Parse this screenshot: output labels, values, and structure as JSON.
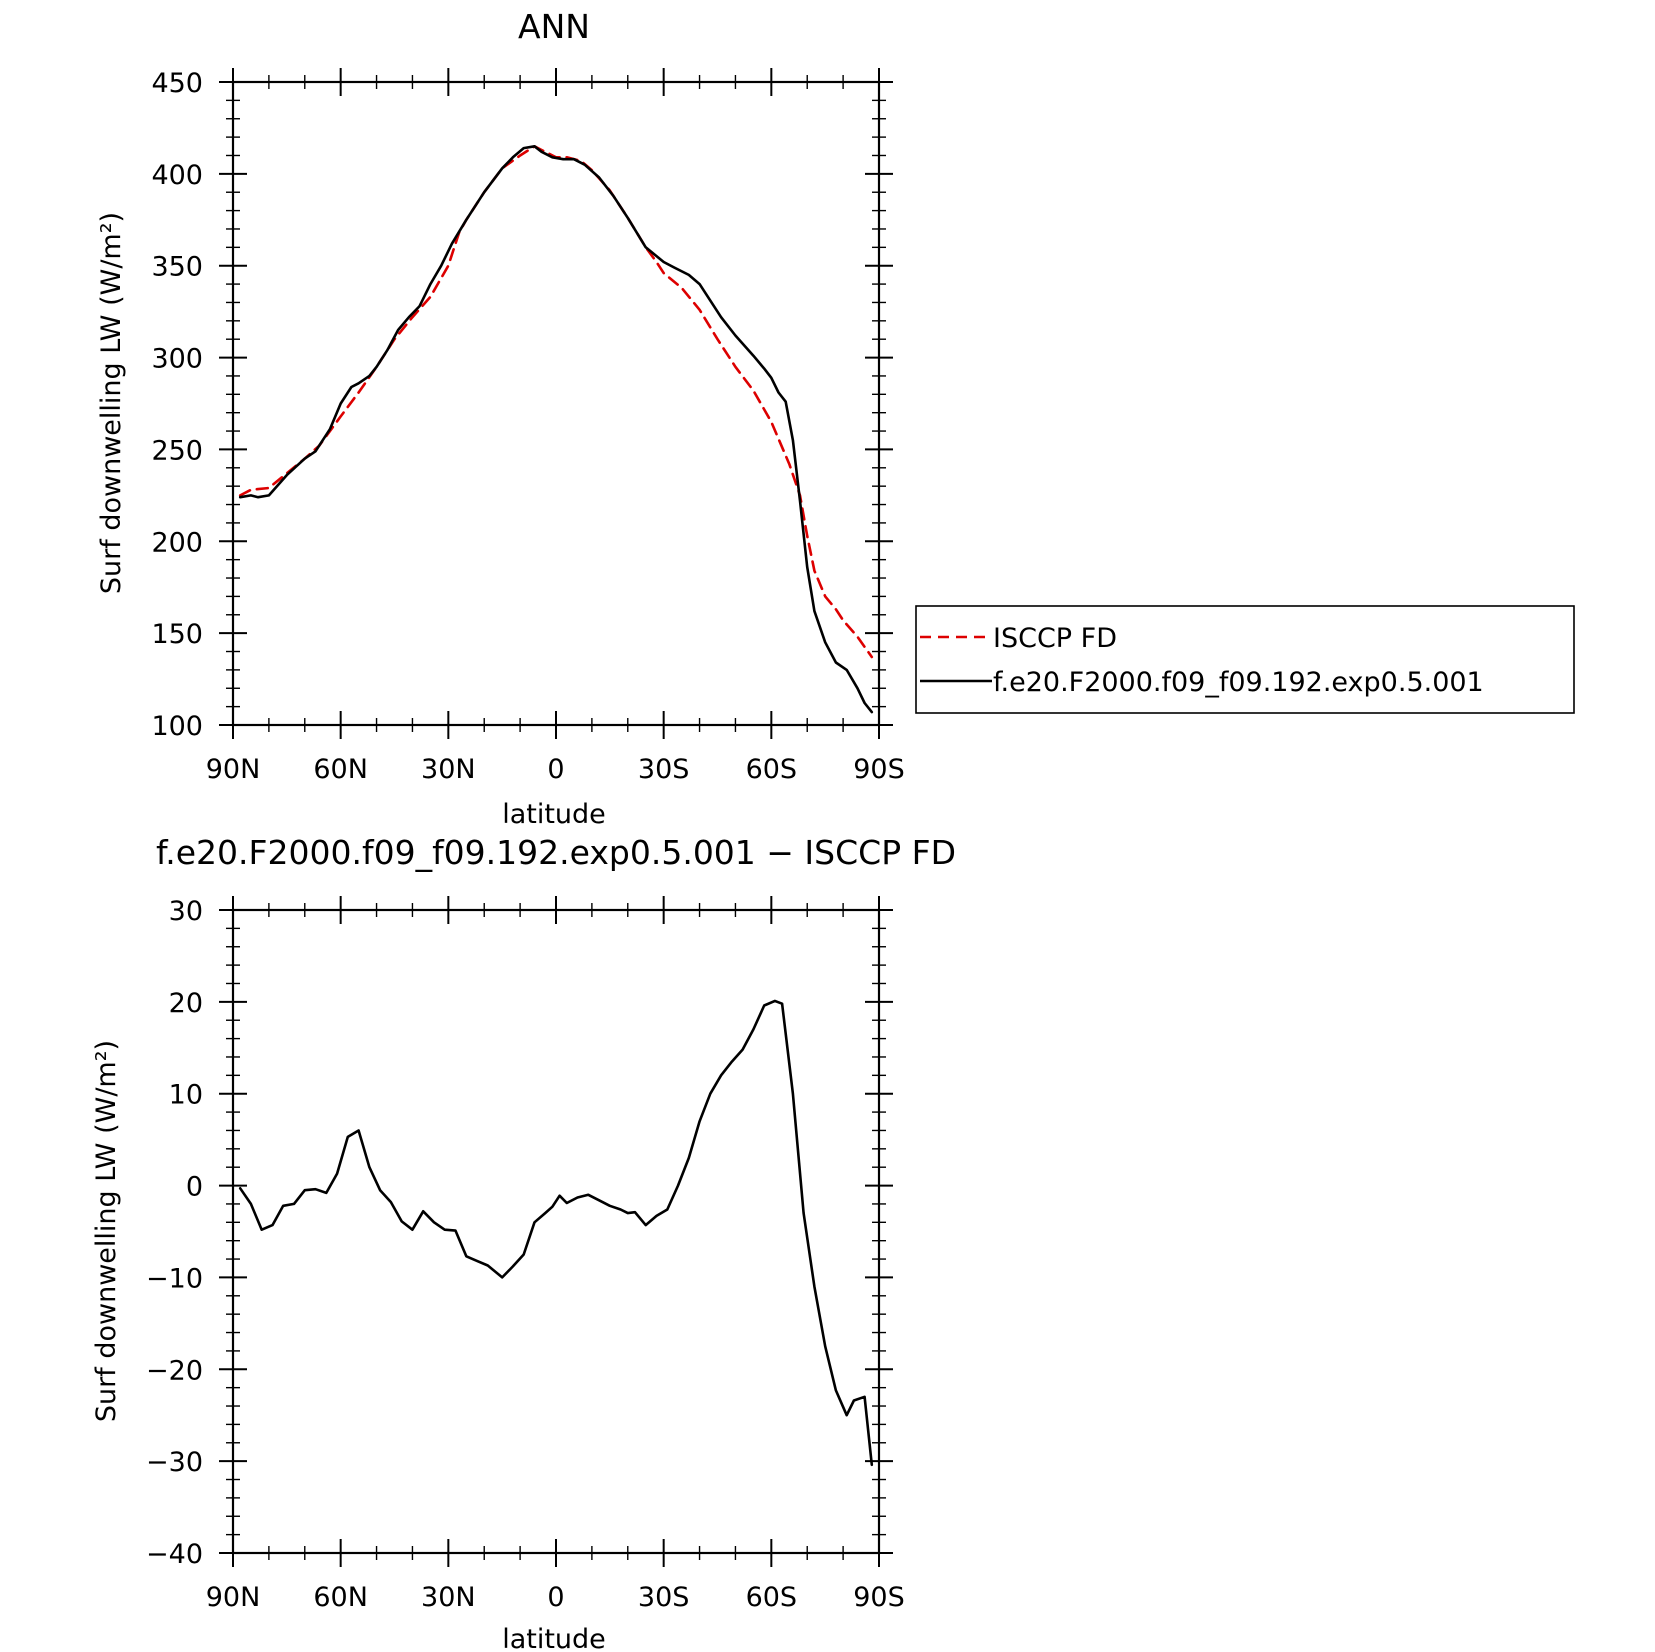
{
  "chart_data": [
    {
      "type": "line",
      "title": "ANN",
      "xlabel": "latitude",
      "ylabel": "Surf downwelling LW (W/m²)",
      "xlim": [
        "90N",
        "90S"
      ],
      "ylim": [
        100,
        450
      ],
      "x_ticks": [
        "90N",
        "60N",
        "30N",
        "0",
        "30S",
        "60S",
        "90S"
      ],
      "y_ticks": [
        100,
        150,
        200,
        250,
        300,
        350,
        400,
        450
      ],
      "legend_position": "right",
      "series": [
        {
          "name": "ISCCP FD",
          "color": "#dd0000",
          "style": "dashed",
          "lat": [
            88,
            85,
            80,
            75,
            70,
            66,
            60,
            55,
            50,
            45,
            40,
            35,
            30,
            27,
            25,
            20,
            15,
            10,
            6,
            4,
            2,
            0,
            -3,
            -7,
            -10,
            -15,
            -20,
            -25,
            -28,
            -30,
            -35,
            -40,
            -45,
            -50,
            -55,
            -60,
            -65,
            -68,
            -70,
            -72,
            -75,
            -78,
            -80,
            -84,
            -88
          ],
          "values": [
            225,
            228,
            229,
            237,
            245,
            252,
            268,
            281,
            295,
            310,
            322,
            333,
            350,
            368,
            375,
            390,
            403,
            410,
            415,
            413,
            411,
            409,
            409,
            407,
            402,
            391,
            376,
            360,
            352,
            346,
            338,
            326,
            310,
            295,
            282,
            265,
            242,
            225,
            203,
            184,
            170,
            163,
            157,
            148,
            137
          ]
        },
        {
          "name": "f.e20.F2000.f09_f09.192.exp0.5.001",
          "color": "#000000",
          "style": "solid",
          "lat": [
            88,
            85,
            83,
            80,
            75,
            70,
            67,
            63,
            60,
            57,
            55,
            52,
            50,
            47,
            44,
            41,
            38,
            35,
            32,
            29,
            25,
            20,
            15,
            12,
            9,
            6,
            4,
            1,
            -2,
            -5,
            -8,
            -12,
            -16,
            -20,
            -25,
            -30,
            -33,
            -37,
            -40,
            -43,
            -46,
            -50,
            -55,
            -58,
            -60,
            -62,
            -64,
            -66,
            -68,
            -70,
            -72,
            -75,
            -78,
            -81,
            -84,
            -86,
            -88
          ],
          "values": [
            224,
            225,
            224,
            225,
            236,
            245,
            249,
            261,
            275,
            284,
            286,
            290,
            295,
            304,
            315,
            322,
            328,
            340,
            350,
            362,
            375,
            390,
            403,
            409,
            414,
            415,
            412,
            409,
            408,
            408,
            405,
            398,
            388,
            376,
            360,
            352,
            349,
            345,
            340,
            331,
            322,
            312,
            301,
            294,
            289,
            281,
            276,
            255,
            222,
            186,
            162,
            145,
            134,
            130,
            120,
            112,
            107
          ]
        }
      ]
    },
    {
      "type": "line",
      "title": "f.e20.F2000.f09_f09.192.exp0.5.001 − ISCCP FD",
      "xlabel": "latitude",
      "ylabel": "Surf downwelling LW (W/m²)",
      "xlim": [
        "90N",
        "90S"
      ],
      "ylim": [
        -40,
        30
      ],
      "x_ticks": [
        "90N",
        "60N",
        "30N",
        "0",
        "30S",
        "60S",
        "90S"
      ],
      "y_ticks": [
        -40,
        -30,
        -20,
        -10,
        0,
        10,
        20,
        30
      ],
      "series": [
        {
          "color": "#000000",
          "style": "solid",
          "lat": [
            88,
            85,
            82,
            79,
            76,
            73,
            70,
            67,
            64,
            61,
            58,
            55,
            52,
            49,
            46,
            43,
            40,
            37,
            34,
            31,
            28,
            25,
            22,
            19,
            15,
            12,
            9,
            6,
            3,
            1,
            -1,
            -3,
            -6,
            -9,
            -12,
            -15,
            -18,
            -20,
            -22,
            -25,
            -28,
            -31,
            -34,
            -37,
            -40,
            -43,
            -46,
            -49,
            -52,
            -55,
            -58,
            -61,
            -63,
            -66,
            -69,
            -72,
            -75,
            -78,
            -81,
            -83,
            -86,
            -88
          ],
          "values": [
            -0.3,
            -2,
            -4.8,
            -4.3,
            -2.2,
            -2,
            -0.5,
            -0.4,
            -0.8,
            1.3,
            5.3,
            6,
            2,
            -0.5,
            -1.8,
            -3.9,
            -4.8,
            -2.8,
            -4,
            -4.8,
            -4.9,
            -7.7,
            -8.2,
            -8.7,
            -10,
            -8.8,
            -7.5,
            -4,
            -3,
            -2.3,
            -1.1,
            -1.9,
            -1.3,
            -1,
            -1.6,
            -2.2,
            -2.6,
            -3,
            -2.9,
            -4.3,
            -3.3,
            -2.6,
            0,
            3,
            7,
            10,
            12,
            13.5,
            14.8,
            17,
            19.6,
            20.1,
            19.8,
            10,
            -3,
            -11,
            -17.5,
            -22.3,
            -25,
            -23.4,
            -23,
            -30.4
          ]
        }
      ]
    }
  ]
}
